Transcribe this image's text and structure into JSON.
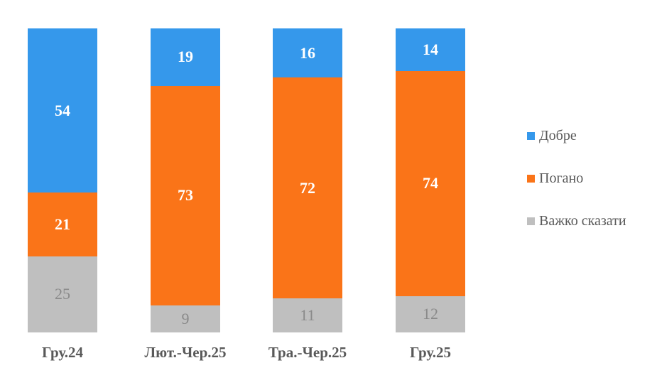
{
  "chart_data": {
    "type": "bar",
    "stacked": true,
    "orientation": "vertical",
    "title": "",
    "grid": false,
    "axis_text_color": "#595959",
    "categories": [
      "Гру.24",
      "Лют.-Чер.25",
      "Тра.-Чер.25",
      "Гру.25"
    ],
    "series": [
      {
        "name": "Добре",
        "color": "#3598EB",
        "label_color": "#FFFFFF",
        "label_bold": true,
        "values": [
          54,
          19,
          16,
          14
        ]
      },
      {
        "name": "Погано",
        "color": "#FA7418",
        "label_color": "#FFFFFF",
        "label_bold": true,
        "values": [
          21,
          73,
          72,
          74
        ]
      },
      {
        "name": "Важко сказати",
        "color": "#BFBFBF",
        "label_color": "#8A8A8A",
        "label_bold": false,
        "values": [
          25,
          9,
          11,
          12
        ]
      }
    ],
    "legend": {
      "position": "right",
      "items": [
        "Добре",
        "Погано",
        "Важко сказати"
      ]
    }
  }
}
